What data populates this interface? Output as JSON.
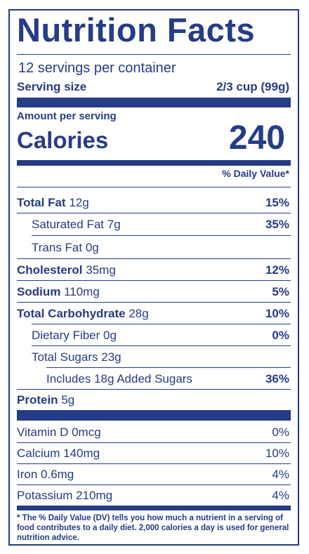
{
  "title": "Nutrition Facts",
  "servings": "12 servings per container",
  "serving_size_label": "Serving size",
  "serving_size_value": "2/3 cup (99g)",
  "amount_per_serving": "Amount per serving",
  "calories_label": "Calories",
  "calories_value": "240",
  "dv_header": "% Daily Value*",
  "nutrients": [
    {
      "name": "Total Fat",
      "amount": "12g",
      "dv": "15%"
    },
    {
      "name": "Saturated Fat",
      "amount": "7g",
      "dv": "35%"
    },
    {
      "name": "Trans Fat",
      "amount": "0g",
      "dv": ""
    },
    {
      "name": "Cholesterol",
      "amount": "35mg",
      "dv": "12%"
    },
    {
      "name": "Sodium",
      "amount": "110mg",
      "dv": "5%"
    },
    {
      "name": "Total Carbohydrate",
      "amount": "28g",
      "dv": "10%"
    },
    {
      "name": "Dietary Fiber",
      "amount": "0g",
      "dv": "0%"
    },
    {
      "name": "Total Sugars",
      "amount": "23g",
      "dv": ""
    },
    {
      "name": "Includes 18g Added Sugars",
      "amount": "",
      "dv": "36%"
    },
    {
      "name": "Protein",
      "amount": "5g",
      "dv": ""
    }
  ],
  "vitamins": [
    {
      "name": "Vitamin D 0mcg",
      "dv": "0%"
    },
    {
      "name": "Calcium 140mg",
      "dv": "10%"
    },
    {
      "name": "Iron 0.6mg",
      "dv": "4%"
    },
    {
      "name": "Potassium 210mg",
      "dv": "4%"
    }
  ],
  "footnote": "* The % Daily Value (DV) tells you how much a nutrient in a serving of food contributes to a daily diet. 2,000 calories a day is used for general nutrition advice."
}
